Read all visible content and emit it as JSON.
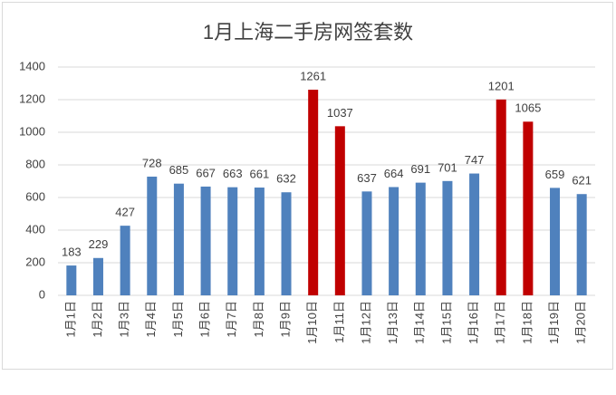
{
  "chart_data": {
    "type": "bar",
    "title": "1月上海二手房网签套数",
    "categories": [
      "1月1日",
      "1月2日",
      "1月3日",
      "1月4日",
      "1月5日",
      "1月6日",
      "1月7日",
      "1月8日",
      "1月9日",
      "1月10日",
      "1月11日",
      "1月12日",
      "1月13日",
      "1月14日",
      "1月15日",
      "1月16日",
      "1月17日",
      "1月18日",
      "1月19日",
      "1月20日"
    ],
    "values": [
      183,
      229,
      427,
      728,
      685,
      667,
      663,
      661,
      632,
      1261,
      1037,
      637,
      664,
      691,
      701,
      747,
      1201,
      1065,
      659,
      621
    ],
    "colors": [
      "#4f81bd",
      "#4f81bd",
      "#4f81bd",
      "#4f81bd",
      "#4f81bd",
      "#4f81bd",
      "#4f81bd",
      "#4f81bd",
      "#4f81bd",
      "#c00000",
      "#c00000",
      "#4f81bd",
      "#4f81bd",
      "#4f81bd",
      "#4f81bd",
      "#4f81bd",
      "#c00000",
      "#c00000",
      "#4f81bd",
      "#4f81bd"
    ],
    "ylim": [
      0,
      1400
    ],
    "yticks": [
      0,
      200,
      400,
      600,
      800,
      1000,
      1200,
      1400
    ],
    "grid": true
  }
}
